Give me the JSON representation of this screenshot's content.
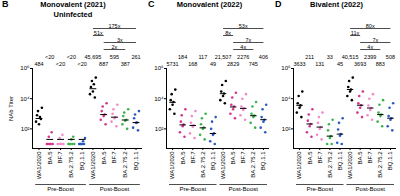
{
  "chart_data": [
    {
      "type": "scatter",
      "panel_label": "B",
      "title": "Monovalent (2021)",
      "subtitle": "Uninfected",
      "ylabel": "NAb Titer",
      "log": "y",
      "marker": "circle",
      "data_labels": true,
      "ylim": [
        5,
        1000000
      ],
      "yticks": [
        {
          "value": 100,
          "label": "10²"
        },
        {
          "value": 10000,
          "label": "10⁴"
        },
        {
          "value": 1000000,
          "label": "10⁶"
        }
      ],
      "categories": [
        "WA1/2020",
        "BA.5",
        "BF.7",
        "BA.2.75.2",
        "BQ.1.1",
        "WA1/2020",
        "BA.5",
        "BF.7",
        "BA.2.75.2",
        "BQ.1.1"
      ],
      "groups": [
        {
          "label": "Pre-Boost",
          "from": 0,
          "to": 4
        },
        {
          "label": "Post-Boost",
          "from": 5,
          "to": 9
        }
      ],
      "colors": [
        "#000000",
        "#d6338c",
        "#f08cc8",
        "#3cb44b",
        "#2b59c3",
        "#000000",
        "#d6338c",
        "#f08cc8",
        "#3cb44b",
        "#2b59c3"
      ],
      "values": [
        484,
        20,
        20,
        20,
        20,
        45695,
        887,
        595,
        387,
        261
      ],
      "value_labels": [
        "484",
        "<20",
        "<20",
        "<20",
        "<20",
        "45,695",
        "887",
        "595",
        "387",
        "261"
      ],
      "points": [
        [
          300,
          800,
          1500,
          200,
          600,
          450,
          2500
        ],
        [
          10,
          10,
          30,
          10,
          10,
          60,
          10
        ],
        [
          10,
          10,
          25,
          10,
          10,
          40,
          10
        ],
        [
          10,
          10,
          10,
          20,
          10,
          30,
          10
        ],
        [
          10,
          10,
          10,
          10,
          15,
          10,
          25
        ],
        [
          20000,
          60000,
          150000,
          30000,
          90000,
          12000,
          250000
        ],
        [
          400,
          1500,
          3000,
          700,
          900,
          200,
          5000
        ],
        [
          300,
          1000,
          2000,
          500,
          600,
          150,
          4000
        ],
        [
          200,
          700,
          1200,
          350,
          400,
          100,
          2000
        ],
        [
          120,
          500,
          900,
          250,
          260,
          80,
          1500
        ]
      ],
      "annotations": [
        {
          "text": "175x",
          "from": 5,
          "to": 9
        },
        {
          "text": "51x",
          "from": 5,
          "to": 6
        },
        {
          "text": "3x",
          "from": 6,
          "to": 9
        },
        {
          "text": "2x",
          "from": 6,
          "to": 8
        }
      ]
    },
    {
      "type": "scatter",
      "panel_label": "C",
      "title": "Monovalent (2022)",
      "log": "y",
      "marker": "circle",
      "data_labels": true,
      "ylim": [
        5,
        1000000
      ],
      "yticks": [
        {
          "value": 100,
          "label": "10²"
        },
        {
          "value": 10000,
          "label": "10⁴"
        },
        {
          "value": 1000000,
          "label": "10⁶"
        }
      ],
      "categories": [
        "WA1/2020",
        "BA.5",
        "BF.7",
        "BA.2.75.2",
        "BQ.1.1",
        "WA1/2020",
        "BA.5",
        "BF.7",
        "BA.2.75.2",
        "BQ.1.1"
      ],
      "groups": [
        {
          "label": "Pre-Boost",
          "from": 0,
          "to": 4
        },
        {
          "label": "Post-Boost",
          "from": 5,
          "to": 9
        }
      ],
      "colors": [
        "#000000",
        "#d6338c",
        "#f08cc8",
        "#3cb44b",
        "#2b59c3",
        "#000000",
        "#d6338c",
        "#f08cc8",
        "#3cb44b",
        "#2b59c3"
      ],
      "values": [
        5731,
        184,
        168,
        117,
        49,
        21507,
        2829,
        2276,
        745,
        406
      ],
      "value_labels": [
        "5731",
        "184",
        "168",
        "117",
        "49",
        "21,507",
        "2829",
        "2276",
        "745",
        "406"
      ],
      "points": [
        [
          2000,
          8000,
          20000,
          4000,
          6000,
          1000,
          40000
        ],
        [
          60,
          300,
          800,
          150,
          190,
          30,
          2000
        ],
        [
          50,
          250,
          700,
          140,
          170,
          25,
          1500
        ],
        [
          40,
          200,
          500,
          100,
          120,
          20,
          1000
        ],
        [
          15,
          100,
          300,
          40,
          50,
          10,
          600
        ],
        [
          8000,
          30000,
          80000,
          15000,
          22000,
          5000,
          150000
        ],
        [
          1000,
          4000,
          12000,
          2000,
          3000,
          500,
          25000
        ],
        [
          800,
          3000,
          10000,
          1800,
          2300,
          400,
          20000
        ],
        [
          250,
          1000,
          3000,
          600,
          750,
          120,
          6000
        ],
        [
          120,
          600,
          2000,
          300,
          400,
          60,
          4000
        ]
      ],
      "annotations": [
        {
          "text": "53x",
          "from": 5,
          "to": 9
        },
        {
          "text": "8x",
          "from": 5,
          "to": 6
        },
        {
          "text": "7x",
          "from": 6,
          "to": 9
        },
        {
          "text": "4x",
          "from": 6,
          "to": 8
        }
      ]
    },
    {
      "type": "scatter",
      "panel_label": "D",
      "title": "Bivalent (2022)",
      "log": "y",
      "marker": "circle",
      "data_labels": true,
      "ylim": [
        5,
        1000000
      ],
      "yticks": [
        {
          "value": 100,
          "label": "10²"
        },
        {
          "value": 10000,
          "label": "10⁴"
        },
        {
          "value": 1000000,
          "label": "10⁶"
        }
      ],
      "categories": [
        "WA1/2020",
        "BA.5",
        "BF.7",
        "BA.2.75.2",
        "BQ.1.1",
        "WA1/2020",
        "BA.5",
        "BF.7",
        "BA.2.75.2",
        "BQ.1.1"
      ],
      "groups": [
        {
          "label": "Pre-Boost",
          "from": 0,
          "to": 4
        },
        {
          "label": "Post-Boost",
          "from": 5,
          "to": 9
        }
      ],
      "colors": [
        "#000000",
        "#d6338c",
        "#f08cc8",
        "#3cb44b",
        "#2b59c3",
        "#000000",
        "#d6338c",
        "#f08cc8",
        "#3cb44b",
        "#2b59c3"
      ],
      "values": [
        3633,
        211,
        131,
        33,
        45,
        40515,
        3693,
        2399,
        883,
        508
      ],
      "value_labels": [
        "3633",
        "211",
        "131",
        "33",
        "45",
        "40,515",
        "3693",
        "2399",
        "883",
        "508"
      ],
      "points": [
        [
          1200,
          5000,
          15000,
          2500,
          3600,
          600,
          30000
        ],
        [
          60,
          350,
          900,
          150,
          210,
          30,
          2000
        ],
        [
          40,
          250,
          600,
          100,
          130,
          20,
          1200
        ],
        [
          10,
          80,
          200,
          25,
          33,
          10,
          400
        ],
        [
          12,
          90,
          250,
          35,
          45,
          10,
          500
        ],
        [
          15000,
          60000,
          150000,
          30000,
          40000,
          8000,
          250000
        ],
        [
          1200,
          5000,
          15000,
          2500,
          3700,
          600,
          30000
        ],
        [
          800,
          3500,
          10000,
          1800,
          2400,
          400,
          20000
        ],
        [
          300,
          1200,
          4000,
          700,
          880,
          150,
          8000
        ],
        [
          150,
          700,
          2500,
          400,
          510,
          80,
          5000
        ]
      ],
      "annotations": [
        {
          "text": "80x",
          "from": 5,
          "to": 9
        },
        {
          "text": "11x",
          "from": 5,
          "to": 6
        },
        {
          "text": "7x",
          "from": 6,
          "to": 9
        },
        {
          "text": "4x",
          "from": 6,
          "to": 8
        }
      ]
    }
  ]
}
